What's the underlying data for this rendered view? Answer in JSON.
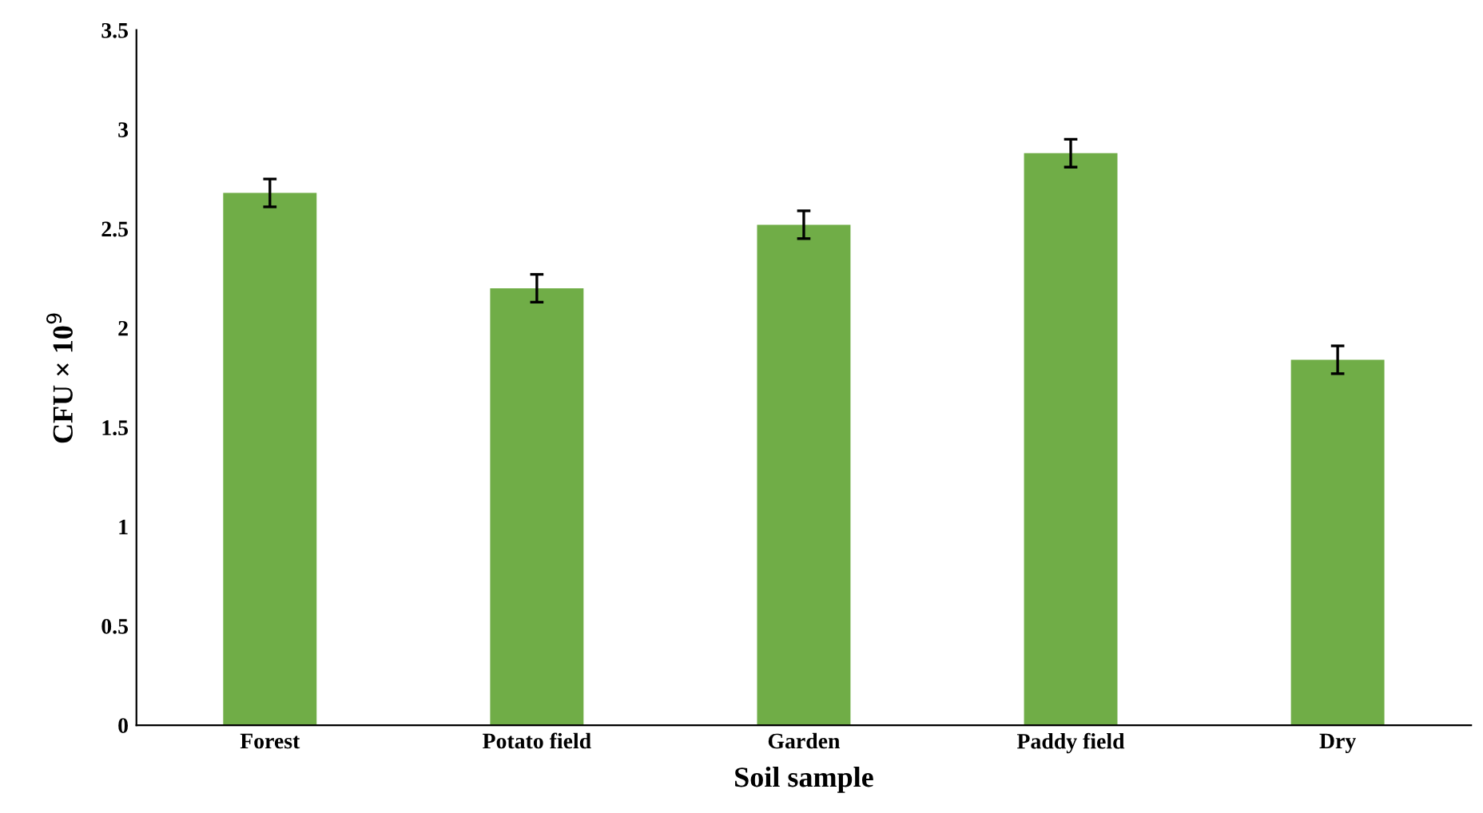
{
  "chart_data": {
    "type": "bar",
    "xlabel": "Soil sample",
    "ylabel": "CFU × 10$^{9}$",
    "categories": [
      "Forest",
      "Potato field",
      "Garden",
      "Paddy field",
      "Dry"
    ],
    "values": [
      2.68,
      2.2,
      2.52,
      2.88,
      1.84
    ],
    "errors": [
      0.07,
      0.07,
      0.07,
      0.07,
      0.07
    ],
    "color": "#70ad47",
    "ylim": [
      0,
      3.5
    ],
    "yticks": [
      0,
      0.5,
      1,
      1.5,
      2,
      2.5,
      3,
      3.5
    ],
    "grid": false,
    "legend": false
  }
}
